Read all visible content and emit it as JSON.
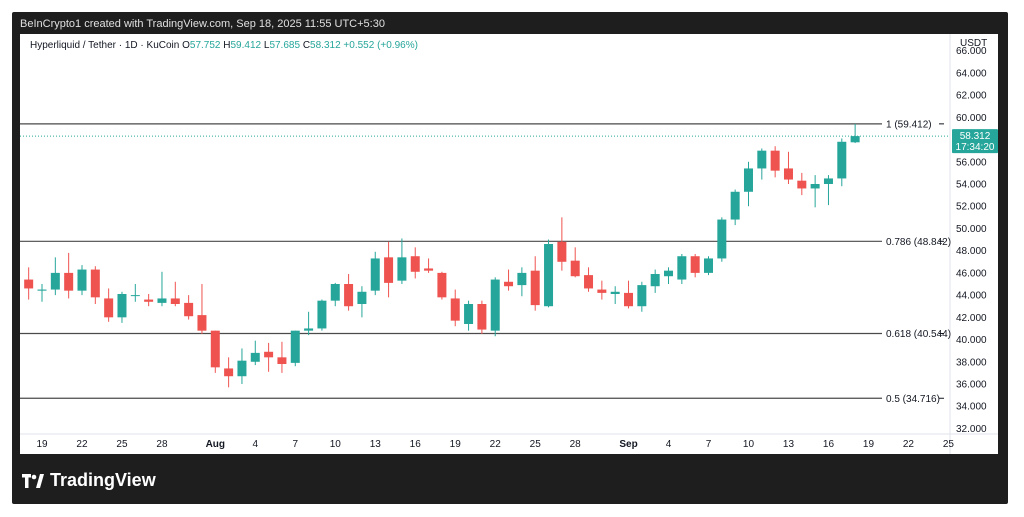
{
  "header": {
    "credit": "BeInCrypto1 created with TradingView.com, Sep 18, 2025 11:55 UTC+5:30"
  },
  "legend": {
    "symbol": "Hyperliquid / Tether · 1D · KuCoin",
    "o_label": "O",
    "o": "57.752",
    "h_label": "H",
    "h": "59.412",
    "l_label": "L",
    "l": "57.685",
    "c_label": "C",
    "c": "58.312",
    "change": "+0.552 (+0.96%)"
  },
  "footer": {
    "brand": "TradingView"
  },
  "colors": {
    "up": "#26a69a",
    "down": "#ef5350",
    "level": "#4a4a4a",
    "price_line": "#26a69a"
  },
  "chart_data": {
    "type": "candlestick",
    "currency_label": "USDT",
    "ylim": [
      31.5,
      67.5
    ],
    "y_ticks": [
      "32.000",
      "34.000",
      "36.000",
      "38.000",
      "40.000",
      "42.000",
      "44.000",
      "46.000",
      "48.000",
      "50.000",
      "52.000",
      "54.000",
      "56.000",
      "58.000",
      "60.000",
      "62.000",
      "64.000",
      "66.000"
    ],
    "x_ticks": [
      {
        "label": "19",
        "x": "2025-07-19"
      },
      {
        "label": "22",
        "x": "2025-07-22"
      },
      {
        "label": "25",
        "x": "2025-07-25"
      },
      {
        "label": "28",
        "x": "2025-07-28"
      },
      {
        "label": "Aug",
        "x": "2025-08-01",
        "bold": true
      },
      {
        "label": "4",
        "x": "2025-08-04"
      },
      {
        "label": "7",
        "x": "2025-08-07"
      },
      {
        "label": "10",
        "x": "2025-08-10"
      },
      {
        "label": "13",
        "x": "2025-08-13"
      },
      {
        "label": "16",
        "x": "2025-08-16"
      },
      {
        "label": "19",
        "x": "2025-08-19"
      },
      {
        "label": "22",
        "x": "2025-08-22"
      },
      {
        "label": "25",
        "x": "2025-08-25"
      },
      {
        "label": "28",
        "x": "2025-08-28"
      },
      {
        "label": "Sep",
        "x": "2025-09-01",
        "bold": true
      },
      {
        "label": "4",
        "x": "2025-09-04"
      },
      {
        "label": "7",
        "x": "2025-09-07"
      },
      {
        "label": "10",
        "x": "2025-09-10"
      },
      {
        "label": "13",
        "x": "2025-09-13"
      },
      {
        "label": "16",
        "x": "2025-09-16"
      },
      {
        "label": "19",
        "x": "2025-09-19"
      },
      {
        "label": "22",
        "x": "2025-09-22"
      },
      {
        "label": "25",
        "x": "2025-09-25"
      }
    ],
    "levels": [
      {
        "label": "1 (59.412)",
        "value": 59.412
      },
      {
        "label": "0.786 (48.842)",
        "value": 48.842
      },
      {
        "label": "0.618 (40.544)",
        "value": 40.544
      },
      {
        "label": "0.5 (34.716)",
        "value": 34.716
      }
    ],
    "current_price": {
      "value": 58.312,
      "label": "58.312",
      "countdown": "17:34:20"
    },
    "candles": [
      {
        "date": "2025-07-18",
        "o": 45.4,
        "h": 46.5,
        "l": 43.6,
        "c": 44.6
      },
      {
        "date": "2025-07-19",
        "o": 44.4,
        "h": 45.0,
        "l": 43.4,
        "c": 44.5
      },
      {
        "date": "2025-07-20",
        "o": 44.5,
        "h": 47.4,
        "l": 44.0,
        "c": 46.0
      },
      {
        "date": "2025-07-21",
        "o": 46.0,
        "h": 47.8,
        "l": 43.7,
        "c": 44.4
      },
      {
        "date": "2025-07-22",
        "o": 44.4,
        "h": 46.7,
        "l": 44.0,
        "c": 46.3
      },
      {
        "date": "2025-07-23",
        "o": 46.3,
        "h": 46.6,
        "l": 43.2,
        "c": 43.8
      },
      {
        "date": "2025-07-24",
        "o": 43.7,
        "h": 44.6,
        "l": 41.6,
        "c": 42.0
      },
      {
        "date": "2025-07-25",
        "o": 42.0,
        "h": 44.3,
        "l": 41.5,
        "c": 44.1
      },
      {
        "date": "2025-07-26",
        "o": 44.0,
        "h": 45.0,
        "l": 43.4,
        "c": 44.0
      },
      {
        "date": "2025-07-27",
        "o": 43.6,
        "h": 44.1,
        "l": 43.0,
        "c": 43.4
      },
      {
        "date": "2025-07-28",
        "o": 43.3,
        "h": 46.1,
        "l": 43.0,
        "c": 43.7
      },
      {
        "date": "2025-07-29",
        "o": 43.7,
        "h": 45.2,
        "l": 43.0,
        "c": 43.2
      },
      {
        "date": "2025-07-30",
        "o": 43.3,
        "h": 44.0,
        "l": 41.8,
        "c": 42.1
      },
      {
        "date": "2025-07-31",
        "o": 42.2,
        "h": 45.0,
        "l": 40.5,
        "c": 40.8
      },
      {
        "date": "2025-08-01",
        "o": 40.8,
        "h": 40.8,
        "l": 37.0,
        "c": 37.5
      },
      {
        "date": "2025-08-02",
        "o": 37.4,
        "h": 38.4,
        "l": 35.7,
        "c": 36.7
      },
      {
        "date": "2025-08-03",
        "o": 36.7,
        "h": 39.2,
        "l": 36.0,
        "c": 38.1
      },
      {
        "date": "2025-08-04",
        "o": 38.0,
        "h": 39.9,
        "l": 37.7,
        "c": 38.8
      },
      {
        "date": "2025-08-05",
        "o": 38.9,
        "h": 39.7,
        "l": 37.1,
        "c": 38.4
      },
      {
        "date": "2025-08-06",
        "o": 38.4,
        "h": 39.8,
        "l": 37.0,
        "c": 37.8
      },
      {
        "date": "2025-08-07",
        "o": 37.9,
        "h": 40.8,
        "l": 37.6,
        "c": 40.8
      },
      {
        "date": "2025-08-08",
        "o": 40.8,
        "h": 42.5,
        "l": 40.4,
        "c": 41.0
      },
      {
        "date": "2025-08-09",
        "o": 41.0,
        "h": 43.6,
        "l": 40.8,
        "c": 43.5
      },
      {
        "date": "2025-08-10",
        "o": 43.5,
        "h": 45.1,
        "l": 43.0,
        "c": 45.0
      },
      {
        "date": "2025-08-11",
        "o": 45.0,
        "h": 45.9,
        "l": 42.6,
        "c": 43.0
      },
      {
        "date": "2025-08-12",
        "o": 43.2,
        "h": 44.8,
        "l": 42.0,
        "c": 44.3
      },
      {
        "date": "2025-08-13",
        "o": 44.4,
        "h": 47.9,
        "l": 44.0,
        "c": 47.3
      },
      {
        "date": "2025-08-14",
        "o": 47.4,
        "h": 48.8,
        "l": 43.8,
        "c": 45.1
      },
      {
        "date": "2025-08-15",
        "o": 45.3,
        "h": 49.1,
        "l": 45.0,
        "c": 47.4
      },
      {
        "date": "2025-08-16",
        "o": 47.5,
        "h": 48.3,
        "l": 45.5,
        "c": 46.1
      },
      {
        "date": "2025-08-17",
        "o": 46.4,
        "h": 47.3,
        "l": 46.0,
        "c": 46.2
      },
      {
        "date": "2025-08-18",
        "o": 46.0,
        "h": 46.1,
        "l": 43.6,
        "c": 43.8
      },
      {
        "date": "2025-08-19",
        "o": 43.7,
        "h": 44.5,
        "l": 41.2,
        "c": 41.7
      },
      {
        "date": "2025-08-20",
        "o": 41.4,
        "h": 43.5,
        "l": 40.8,
        "c": 43.2
      },
      {
        "date": "2025-08-21",
        "o": 43.2,
        "h": 43.5,
        "l": 40.5,
        "c": 40.9
      },
      {
        "date": "2025-08-22",
        "o": 40.8,
        "h": 45.6,
        "l": 40.3,
        "c": 45.4
      },
      {
        "date": "2025-08-23",
        "o": 45.2,
        "h": 46.3,
        "l": 44.4,
        "c": 44.8
      },
      {
        "date": "2025-08-24",
        "o": 44.9,
        "h": 46.5,
        "l": 43.9,
        "c": 46.0
      },
      {
        "date": "2025-08-25",
        "o": 46.2,
        "h": 47.5,
        "l": 42.6,
        "c": 43.1
      },
      {
        "date": "2025-08-26",
        "o": 43.0,
        "h": 49.0,
        "l": 42.9,
        "c": 48.6
      },
      {
        "date": "2025-08-27",
        "o": 48.8,
        "h": 51.0,
        "l": 46.2,
        "c": 47.0
      },
      {
        "date": "2025-08-28",
        "o": 47.1,
        "h": 48.3,
        "l": 45.6,
        "c": 45.7
      },
      {
        "date": "2025-08-29",
        "o": 45.8,
        "h": 46.5,
        "l": 44.3,
        "c": 44.6
      },
      {
        "date": "2025-08-30",
        "o": 44.5,
        "h": 45.3,
        "l": 43.6,
        "c": 44.2
      },
      {
        "date": "2025-08-31",
        "o": 44.1,
        "h": 44.8,
        "l": 43.2,
        "c": 44.3
      },
      {
        "date": "2025-09-01",
        "o": 44.2,
        "h": 45.3,
        "l": 42.8,
        "c": 43.0
      },
      {
        "date": "2025-09-02",
        "o": 43.0,
        "h": 45.2,
        "l": 42.5,
        "c": 44.9
      },
      {
        "date": "2025-09-03",
        "o": 44.8,
        "h": 46.3,
        "l": 44.2,
        "c": 45.9
      },
      {
        "date": "2025-09-04",
        "o": 45.7,
        "h": 46.5,
        "l": 45.0,
        "c": 46.2
      },
      {
        "date": "2025-09-05",
        "o": 45.4,
        "h": 47.7,
        "l": 45.0,
        "c": 47.5
      },
      {
        "date": "2025-09-06",
        "o": 47.5,
        "h": 47.7,
        "l": 45.6,
        "c": 46.0
      },
      {
        "date": "2025-09-07",
        "o": 46.0,
        "h": 47.5,
        "l": 45.8,
        "c": 47.3
      },
      {
        "date": "2025-09-08",
        "o": 47.3,
        "h": 51.0,
        "l": 47.0,
        "c": 50.8
      },
      {
        "date": "2025-09-09",
        "o": 50.8,
        "h": 53.5,
        "l": 50.3,
        "c": 53.3
      },
      {
        "date": "2025-09-10",
        "o": 53.3,
        "h": 56.0,
        "l": 52.0,
        "c": 55.4
      },
      {
        "date": "2025-09-11",
        "o": 55.4,
        "h": 57.2,
        "l": 54.4,
        "c": 57.0
      },
      {
        "date": "2025-09-12",
        "o": 57.0,
        "h": 57.4,
        "l": 54.6,
        "c": 55.2
      },
      {
        "date": "2025-09-13",
        "o": 55.4,
        "h": 56.9,
        "l": 54.0,
        "c": 54.4
      },
      {
        "date": "2025-09-14",
        "o": 54.3,
        "h": 55.0,
        "l": 53.0,
        "c": 53.6
      },
      {
        "date": "2025-09-15",
        "o": 53.6,
        "h": 54.8,
        "l": 51.9,
        "c": 54.0
      },
      {
        "date": "2025-09-16",
        "o": 54.0,
        "h": 54.8,
        "l": 52.1,
        "c": 54.5
      },
      {
        "date": "2025-09-17",
        "o": 54.5,
        "h": 58.1,
        "l": 53.8,
        "c": 57.8
      },
      {
        "date": "2025-09-18",
        "o": 57.752,
        "h": 59.412,
        "l": 57.685,
        "c": 58.312
      }
    ]
  }
}
